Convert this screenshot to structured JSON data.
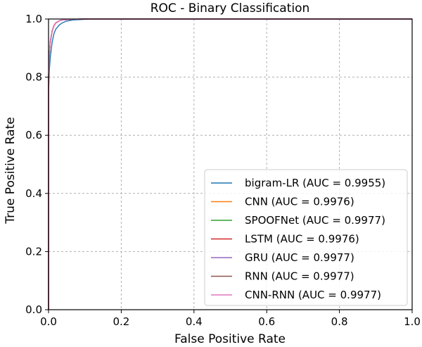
{
  "chart_data": {
    "type": "line",
    "title": "ROC - Binary Classification",
    "xlabel": "False Positive Rate",
    "ylabel": "True Positive Rate",
    "xlim": [
      0.0,
      1.0
    ],
    "ylim": [
      0.0,
      1.0
    ],
    "xticks": [
      "0.0",
      "0.2",
      "0.4",
      "0.6",
      "0.8",
      "1.0"
    ],
    "yticks": [
      "0.0",
      "0.2",
      "0.4",
      "0.6",
      "0.8",
      "1.0"
    ],
    "grid": true,
    "legend_position": "lower-right",
    "series": [
      {
        "name": "bigram-LR (AUC = 0.9955)",
        "color": "#1f77b4",
        "x": [
          0.0,
          0.0,
          0.002,
          0.005,
          0.01,
          0.015,
          0.02,
          0.03,
          0.04,
          0.05,
          0.07,
          0.1,
          0.15,
          0.2,
          0.4,
          0.6,
          0.8,
          1.0
        ],
        "y": [
          0.0,
          0.74,
          0.82,
          0.87,
          0.92,
          0.95,
          0.965,
          0.98,
          0.988,
          0.993,
          0.997,
          0.999,
          1.0,
          1.0,
          1.0,
          1.0,
          1.0,
          1.0
        ]
      },
      {
        "name": "CNN (AUC = 0.9976)",
        "color": "#ff7f0e",
        "x": [
          0.0,
          0.0,
          0.002,
          0.005,
          0.01,
          0.015,
          0.02,
          0.03,
          0.04,
          0.06,
          0.1,
          0.2,
          0.4,
          0.6,
          0.8,
          1.0
        ],
        "y": [
          0.0,
          0.79,
          0.87,
          0.92,
          0.958,
          0.977,
          0.986,
          0.994,
          0.997,
          0.999,
          1.0,
          1.0,
          1.0,
          1.0,
          1.0,
          1.0
        ]
      },
      {
        "name": "SPOOFNet (AUC = 0.9977)",
        "color": "#2ca02c",
        "x": [
          0.0,
          0.0,
          0.002,
          0.005,
          0.01,
          0.015,
          0.02,
          0.03,
          0.04,
          0.06,
          0.1,
          0.2,
          0.4,
          0.6,
          0.8,
          1.0
        ],
        "y": [
          0.0,
          0.8,
          0.875,
          0.925,
          0.96,
          0.978,
          0.987,
          0.994,
          0.997,
          0.999,
          1.0,
          1.0,
          1.0,
          1.0,
          1.0,
          1.0
        ]
      },
      {
        "name": "LSTM (AUC = 0.9976)",
        "color": "#d62728",
        "x": [
          0.0,
          0.0,
          0.002,
          0.005,
          0.01,
          0.015,
          0.02,
          0.03,
          0.04,
          0.06,
          0.1,
          0.2,
          0.4,
          0.6,
          0.8,
          1.0
        ],
        "y": [
          0.0,
          0.79,
          0.87,
          0.92,
          0.958,
          0.977,
          0.986,
          0.994,
          0.997,
          0.999,
          1.0,
          1.0,
          1.0,
          1.0,
          1.0,
          1.0
        ]
      },
      {
        "name": "GRU (AUC = 0.9977)",
        "color": "#9467bd",
        "x": [
          0.0,
          0.0,
          0.002,
          0.005,
          0.01,
          0.015,
          0.02,
          0.03,
          0.04,
          0.06,
          0.1,
          0.2,
          0.4,
          0.6,
          0.8,
          1.0
        ],
        "y": [
          0.0,
          0.8,
          0.875,
          0.925,
          0.96,
          0.978,
          0.987,
          0.994,
          0.997,
          0.999,
          1.0,
          1.0,
          1.0,
          1.0,
          1.0,
          1.0
        ]
      },
      {
        "name": "RNN (AUC = 0.9977)",
        "color": "#8c564b",
        "x": [
          0.0,
          0.0,
          0.002,
          0.005,
          0.01,
          0.015,
          0.02,
          0.03,
          0.04,
          0.06,
          0.1,
          0.2,
          0.4,
          0.6,
          0.8,
          1.0
        ],
        "y": [
          0.0,
          0.8,
          0.875,
          0.925,
          0.96,
          0.978,
          0.987,
          0.994,
          0.997,
          0.999,
          1.0,
          1.0,
          1.0,
          1.0,
          1.0,
          1.0
        ]
      },
      {
        "name": "CNN-RNN (AUC = 0.9977)",
        "color": "#e377c2",
        "x": [
          0.0,
          0.0,
          0.002,
          0.005,
          0.01,
          0.015,
          0.02,
          0.03,
          0.04,
          0.06,
          0.1,
          0.2,
          0.4,
          0.6,
          0.8,
          1.0
        ],
        "y": [
          0.0,
          0.8,
          0.875,
          0.925,
          0.96,
          0.978,
          0.987,
          0.994,
          0.997,
          0.999,
          1.0,
          1.0,
          1.0,
          1.0,
          1.0,
          1.0
        ]
      }
    ]
  }
}
